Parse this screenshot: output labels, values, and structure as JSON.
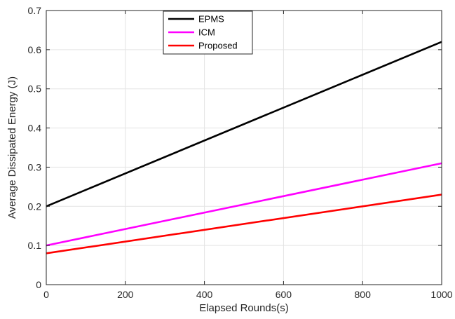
{
  "chart_data": {
    "type": "line",
    "title": "",
    "xlabel": "Elapsed Rounds(s)",
    "ylabel": "Average Dissipated Energy (J)",
    "xlim": [
      0,
      1000
    ],
    "ylim": [
      0,
      0.7
    ],
    "xticks": [
      0,
      200,
      400,
      600,
      800,
      1000
    ],
    "yticks": [
      0,
      0.1,
      0.2,
      0.3,
      0.4,
      0.5,
      0.6,
      0.7
    ],
    "xtick_labels": [
      "0",
      "200",
      "400",
      "600",
      "800",
      "1000"
    ],
    "ytick_labels": [
      "0",
      "0.1",
      "0.2",
      "0.3",
      "0.4",
      "0.5",
      "0.6",
      "0.7"
    ],
    "grid": true,
    "legend_position": "top-center",
    "series": [
      {
        "name": "EPMS",
        "color": "#000000",
        "x": [
          0,
          1000
        ],
        "y": [
          0.2,
          0.62
        ]
      },
      {
        "name": "ICM",
        "color": "#ff00ff",
        "x": [
          0,
          1000
        ],
        "y": [
          0.1,
          0.31
        ]
      },
      {
        "name": "Proposed",
        "color": "#ff0000",
        "x": [
          0,
          1000
        ],
        "y": [
          0.08,
          0.23
        ]
      }
    ]
  }
}
